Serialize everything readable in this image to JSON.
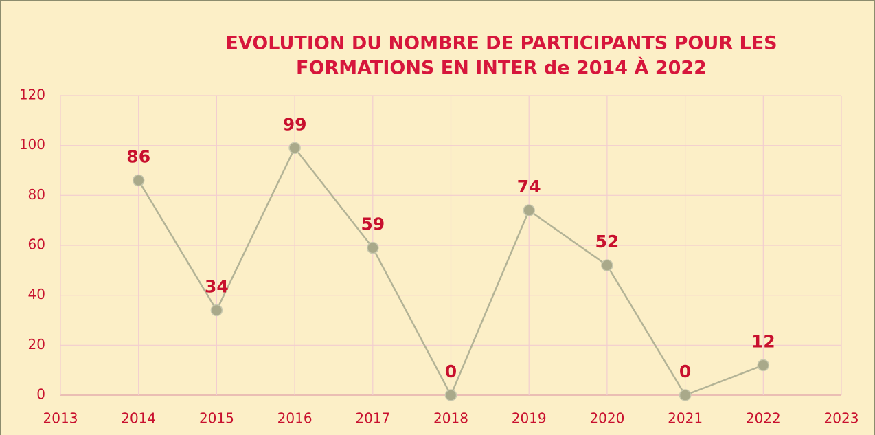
{
  "chart_data": {
    "type": "line",
    "title": [
      "EVOLUTION DU NOMBRE DE PARTICIPANTS  POUR LES",
      "FORMATIONS EN INTER de 2014 À 2022"
    ],
    "x": [
      2014,
      2015,
      2016,
      2017,
      2018,
      2019,
      2020,
      2021,
      2022
    ],
    "series": [
      {
        "name": "Participants",
        "color": "#b3b396",
        "values": [
          86,
          34,
          99,
          59,
          0,
          74,
          52,
          0,
          12
        ]
      }
    ],
    "xlim": [
      2013,
      2023
    ],
    "xticks": [
      2013,
      2014,
      2015,
      2016,
      2017,
      2018,
      2019,
      2020,
      2021,
      2022,
      2023
    ],
    "ylim": [
      0,
      120
    ],
    "yticks": [
      0,
      20,
      40,
      60,
      80,
      100,
      120
    ],
    "grid": true
  }
}
